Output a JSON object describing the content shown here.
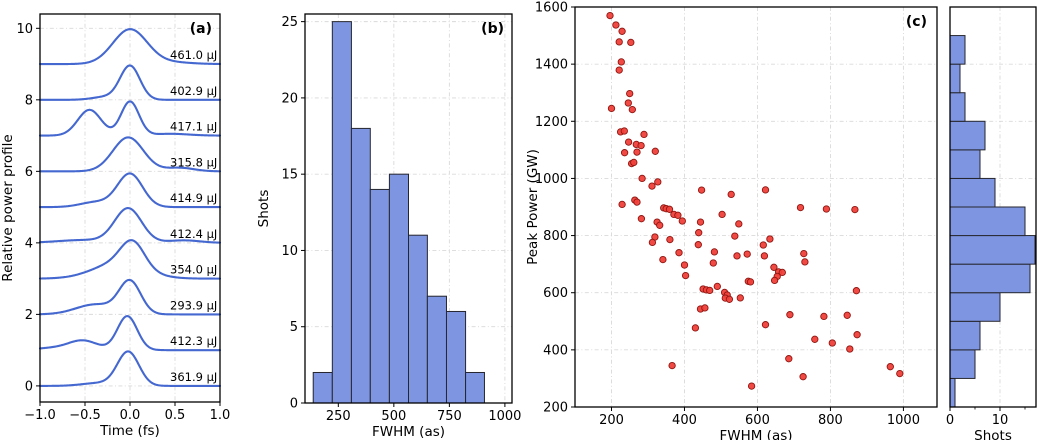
{
  "figure": {
    "background": "#ffffff",
    "grid_color": "#d9d9d9",
    "spine_color": "#000000",
    "blue_fill": "#7e96e2",
    "blue_edge": "#26262e",
    "line_blue": "#4468d0",
    "red_fill": "#f0403a",
    "red_edge": "#8f1510"
  },
  "chart_data": [
    {
      "id": "panel-a",
      "type": "line",
      "tag": "(a)",
      "xlabel": "Time (fs)",
      "ylabel": "Relative power profile",
      "xlim": [
        -1.0,
        1.0
      ],
      "ylim": [
        -0.45,
        10.4
      ],
      "xticks": [
        -1.0,
        -0.5,
        0.0,
        0.5,
        1.0
      ],
      "xtick_labels": [
        "−1.0",
        "−0.5",
        "0.0",
        "0.5",
        "1.0"
      ],
      "yticks": [
        0,
        2,
        4,
        6,
        8,
        10
      ],
      "grid": true,
      "line_color": "#4468d0",
      "label_x": 0.97,
      "traces": [
        {
          "label": "461.0 µJ",
          "offset": 9,
          "components": [
            [
              0.0,
              0.97,
              0.19
            ],
            [
              0.45,
              0.05,
              0.22
            ]
          ]
        },
        {
          "label": "402.9 µJ",
          "offset": 8,
          "components": [
            [
              0.0,
              0.95,
              0.11
            ],
            [
              -0.28,
              0.08,
              0.14
            ]
          ]
        },
        {
          "label": "417.1 µJ",
          "offset": 7,
          "components": [
            [
              -0.45,
              0.72,
              0.13
            ],
            [
              0.0,
              0.95,
              0.1
            ],
            [
              0.45,
              0.05,
              0.2
            ]
          ]
        },
        {
          "label": "315.8 µJ",
          "offset": 6,
          "components": [
            [
              -0.02,
              0.95,
              0.17
            ],
            [
              0.55,
              0.1,
              0.16
            ]
          ]
        },
        {
          "label": "414.9 µJ",
          "offset": 5,
          "components": [
            [
              0.0,
              0.93,
              0.14
            ],
            [
              -0.38,
              0.14,
              0.17
            ]
          ]
        },
        {
          "label": "412.4 µJ",
          "offset": 4,
          "components": [
            [
              -0.02,
              0.95,
              0.15
            ],
            [
              0.6,
              0.07,
              0.18
            ],
            [
              -0.5,
              0.08,
              0.3
            ]
          ]
        },
        {
          "label": "354.0 µJ",
          "offset": 3,
          "components": [
            [
              -0.12,
              0.45,
              0.28
            ],
            [
              0.03,
              0.68,
              0.13
            ]
          ]
        },
        {
          "label": "293.9 µJ",
          "offset": 2,
          "components": [
            [
              0.0,
              0.9,
              0.12
            ],
            [
              -0.38,
              0.28,
              0.22
            ]
          ]
        },
        {
          "label": "412.3 µJ",
          "offset": 1,
          "components": [
            [
              -0.03,
              0.95,
              0.11
            ],
            [
              -0.52,
              0.26,
              0.16
            ],
            [
              -0.85,
              0.06,
              0.2
            ]
          ]
        },
        {
          "label": "361.9 µJ",
          "offset": 0,
          "components": [
            [
              -0.02,
              0.95,
              0.12
            ],
            [
              -0.35,
              0.08,
              0.18
            ]
          ]
        }
      ]
    },
    {
      "id": "panel-b",
      "type": "histogram",
      "tag": "(b)",
      "xlabel": "FWHM (as)",
      "ylabel": "Shots",
      "xlim": [
        100,
        1032
      ],
      "ylim": [
        0,
        25.5
      ],
      "xticks": [
        250,
        500,
        750,
        1000
      ],
      "yticks": [
        0,
        5,
        10,
        15,
        20,
        25
      ],
      "grid": true,
      "bin_edges": [
        137,
        223,
        309,
        394,
        480,
        566,
        651,
        737,
        823,
        908
      ],
      "counts": [
        2,
        25,
        18,
        14,
        15,
        11,
        7,
        6,
        2
      ],
      "bar_fill": "#7e96e2",
      "bar_edge": "#26262e"
    },
    {
      "id": "panel-c",
      "type": "scatter",
      "tag": "(c)",
      "xlabel": "FWHM (as)",
      "ylabel": "Peak Power (GW)",
      "xlim": [
        100,
        1092
      ],
      "ylim": [
        200,
        1600
      ],
      "xticks": [
        200,
        400,
        600,
        800,
        1000
      ],
      "yticks": [
        200,
        400,
        600,
        800,
        1000,
        1200,
        1400,
        1600
      ],
      "grid": true,
      "marker_fill": "#f0403a",
      "marker_edge": "#8f1510",
      "points": [
        [
          196,
          1570
        ],
        [
          212,
          1537
        ],
        [
          229,
          1515
        ],
        [
          221,
          1478
        ],
        [
          253,
          1476
        ],
        [
          227,
          1408
        ],
        [
          221,
          1379
        ],
        [
          250,
          1297
        ],
        [
          246,
          1264
        ],
        [
          200,
          1245
        ],
        [
          257,
          1241
        ],
        [
          225,
          1163
        ],
        [
          235,
          1166
        ],
        [
          289,
          1154
        ],
        [
          247,
          1127
        ],
        [
          268,
          1119
        ],
        [
          281,
          1115
        ],
        [
          236,
          1090
        ],
        [
          270,
          1092
        ],
        [
          320,
          1095
        ],
        [
          255,
          1052
        ],
        [
          261,
          1056
        ],
        [
          284,
          1000
        ],
        [
          327,
          988
        ],
        [
          311,
          973
        ],
        [
          447,
          959
        ],
        [
          528,
          944
        ],
        [
          622,
          960
        ],
        [
          229,
          909
        ],
        [
          264,
          924
        ],
        [
          270,
          917
        ],
        [
          343,
          897
        ],
        [
          350,
          894
        ],
        [
          359,
          892
        ],
        [
          371,
          874
        ],
        [
          382,
          871
        ],
        [
          282,
          859
        ],
        [
          394,
          851
        ],
        [
          325,
          847
        ],
        [
          332,
          836
        ],
        [
          503,
          874
        ],
        [
          444,
          847
        ],
        [
          549,
          841
        ],
        [
          718,
          898
        ],
        [
          789,
          893
        ],
        [
          867,
          891
        ],
        [
          439,
          810
        ],
        [
          319,
          795
        ],
        [
          360,
          786
        ],
        [
          538,
          798
        ],
        [
          312,
          776
        ],
        [
          634,
          788
        ],
        [
          616,
          767
        ],
        [
          438,
          768
        ],
        [
          385,
          740
        ],
        [
          341,
          716
        ],
        [
          400,
          697
        ],
        [
          482,
          743
        ],
        [
          479,
          704
        ],
        [
          544,
          729
        ],
        [
          572,
          735
        ],
        [
          619,
          729
        ],
        [
          727,
          737
        ],
        [
          730,
          708
        ],
        [
          645,
          689
        ],
        [
          658,
          673
        ],
        [
          668,
          671
        ],
        [
          654,
          657
        ],
        [
          403,
          660
        ],
        [
          575,
          640
        ],
        [
          581,
          638
        ],
        [
          647,
          643
        ],
        [
          451,
          613
        ],
        [
          460,
          610
        ],
        [
          469,
          608
        ],
        [
          490,
          622
        ],
        [
          510,
          601
        ],
        [
          517,
          592
        ],
        [
          512,
          581
        ],
        [
          523,
          577
        ],
        [
          553,
          582
        ],
        [
          871,
          607
        ],
        [
          444,
          543
        ],
        [
          456,
          547
        ],
        [
          689,
          523
        ],
        [
          782,
          517
        ],
        [
          846,
          521
        ],
        [
          430,
          477
        ],
        [
          622,
          488
        ],
        [
          873,
          453
        ],
        [
          757,
          437
        ],
        [
          805,
          424
        ],
        [
          853,
          403
        ],
        [
          686,
          369
        ],
        [
          366,
          345
        ],
        [
          964,
          341
        ],
        [
          990,
          317
        ],
        [
          725,
          306
        ],
        [
          584,
          273
        ]
      ]
    },
    {
      "id": "panel-c-side",
      "type": "hbar",
      "tag": "",
      "xlabel": "Shots",
      "ylabel": "",
      "xlim": [
        0,
        17.2
      ],
      "ylim": [
        200,
        1600
      ],
      "xticks": [
        0,
        10
      ],
      "xminor": [
        5,
        15
      ],
      "grid": true,
      "grid_y": [
        200,
        400,
        600,
        800,
        1000,
        1200,
        1400,
        1600
      ],
      "bin_edges": [
        200,
        300,
        400,
        500,
        600,
        700,
        800,
        900,
        1000,
        1100,
        1200,
        1300,
        1400,
        1500
      ],
      "counts": [
        1,
        5,
        6,
        10,
        16,
        17,
        15,
        9,
        6,
        7,
        3,
        2,
        3
      ],
      "bar_fill": "#7e96e2",
      "bar_edge": "#26262e"
    }
  ]
}
